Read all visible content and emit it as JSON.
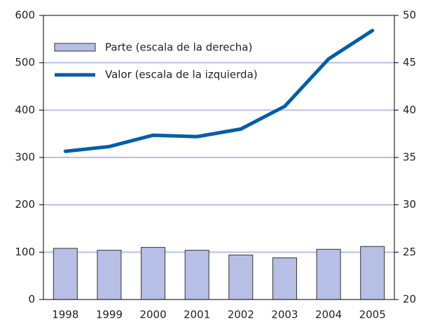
{
  "chart_data": {
    "type": "bar_line",
    "categories": [
      "1998",
      "1999",
      "2000",
      "2001",
      "2002",
      "2003",
      "2004",
      "2005"
    ],
    "series": [
      {
        "name": "Parte (escala de la derecha)",
        "type": "bar",
        "axis": "y2",
        "color": "#b8bfe6",
        "values": [
          25.4,
          25.2,
          25.5,
          25.2,
          24.7,
          24.4,
          25.3,
          25.6
        ]
      },
      {
        "name": "Valor (escala de la izquierda)",
        "type": "line",
        "axis": "y",
        "color": "#005ea8",
        "values": [
          313,
          323,
          347,
          344,
          360,
          408,
          508,
          568
        ]
      }
    ],
    "ylim": [
      0,
      600
    ],
    "yticks": [
      0,
      100,
      200,
      300,
      400,
      500,
      600
    ],
    "y2lim": [
      20,
      50
    ],
    "y2ticks": [
      20,
      25,
      30,
      35,
      40,
      45,
      50
    ],
    "grid": true,
    "legend": "top-left"
  }
}
